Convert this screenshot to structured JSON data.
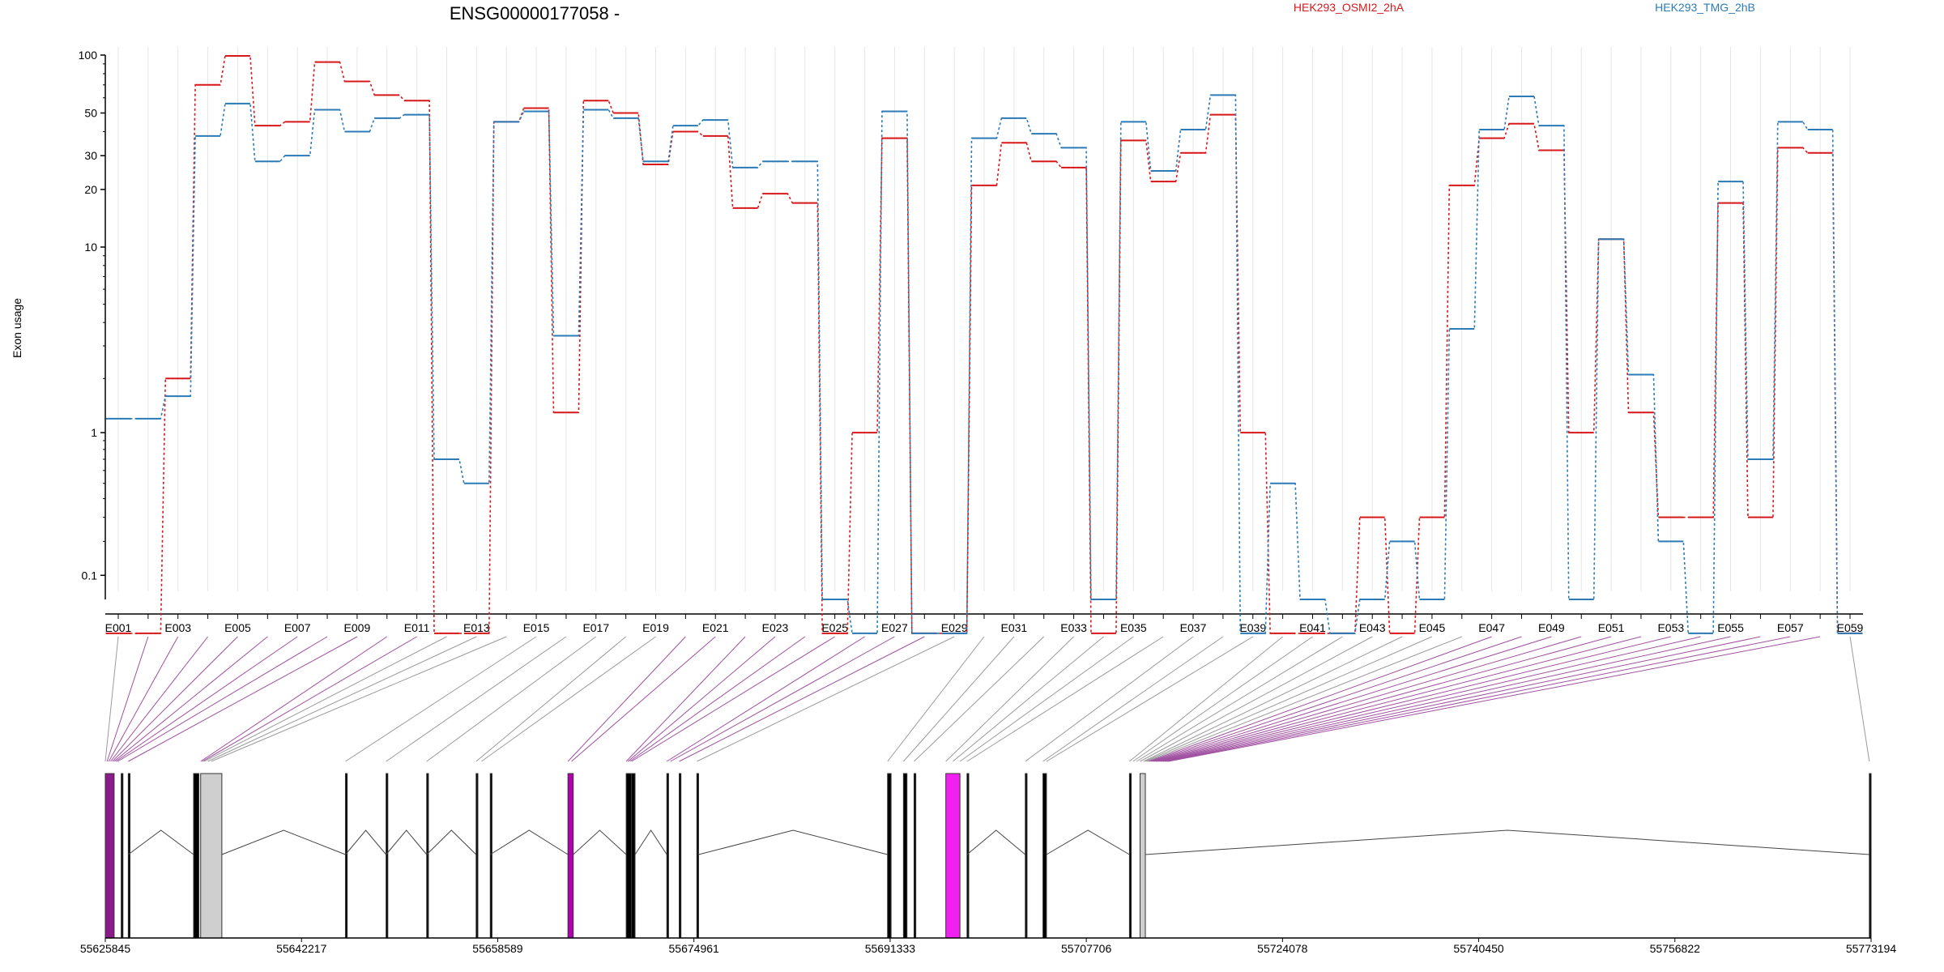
{
  "title": "ENSG00000177058 -",
  "chart_data": {
    "type": "line",
    "title": "ENSG00000177058 -",
    "ylabel": "Exon usage",
    "yscale": "log(x+0.1)",
    "ylim": [
      0.1,
      100
    ],
    "yticks": [
      0.1,
      1,
      10,
      20,
      30,
      50,
      100
    ],
    "ytick_labels": [
      "0.1",
      "1",
      "10",
      "20",
      "30",
      "50",
      "100"
    ],
    "categories": [
      "E001",
      "E002",
      "E003",
      "E004",
      "E005",
      "E006",
      "E007",
      "E008",
      "E009",
      "E010",
      "E011",
      "E012",
      "E013",
      "E014",
      "E015",
      "E016",
      "E017",
      "E018",
      "E019",
      "E020",
      "E021",
      "E022",
      "E023",
      "E024",
      "E025",
      "E026",
      "E027",
      "E028",
      "E029",
      "E030",
      "E031",
      "E032",
      "E033",
      "E034",
      "E035",
      "E036",
      "E037",
      "E038",
      "E039",
      "E040",
      "E041",
      "E042",
      "E043",
      "E044",
      "E045",
      "E046",
      "E047",
      "E048",
      "E049",
      "E050",
      "E051",
      "E052",
      "E053",
      "E054",
      "E055",
      "E056",
      "E057",
      "E058",
      "E059"
    ],
    "xtick_labels": [
      "E001",
      "E003",
      "E005",
      "E007",
      "E009",
      "E011",
      "E013",
      "E015",
      "E017",
      "E019",
      "E021",
      "E023",
      "E025",
      "E027",
      "E029",
      "E031",
      "E033",
      "E035",
      "E037",
      "E039",
      "E041",
      "E043",
      "E045",
      "E047",
      "E049",
      "E051",
      "E053",
      "E055",
      "E057",
      "E059"
    ],
    "series": [
      {
        "name": "HEK293_OSMI2_2hA",
        "color": "#d7191c",
        "values": [
          0.0,
          0.0,
          2.0,
          70,
          99,
          43,
          45,
          92,
          73,
          62,
          58,
          0.0,
          0.0,
          45,
          53,
          1.3,
          58,
          50,
          27,
          40,
          38,
          16,
          19,
          17,
          0.0,
          1.0,
          37,
          0.0,
          0.0,
          21,
          35,
          28,
          26,
          0.0,
          36,
          22,
          31,
          49,
          1.0,
          0.0,
          0.0,
          0.0,
          0.3,
          0.0,
          0.3,
          21,
          37,
          44,
          32,
          1.0,
          11,
          1.3,
          0.3,
          0.3,
          17,
          0.3,
          33,
          31,
          0.0
        ]
      },
      {
        "name": "HEK293_TMG_2hB",
        "color": "#2c7bb6",
        "values": [
          1.2,
          1.2,
          1.6,
          38,
          56,
          28,
          30,
          52,
          40,
          47,
          49,
          0.7,
          0.5,
          45,
          51,
          3.4,
          52,
          47,
          28,
          43,
          46,
          26,
          28,
          28,
          0.05,
          0.0,
          51,
          0.0,
          0.0,
          37,
          47,
          39,
          33,
          0.05,
          45,
          25,
          41,
          62,
          0.0,
          0.5,
          0.05,
          0.0,
          0.05,
          0.2,
          0.05,
          3.7,
          41,
          61,
          43,
          0.05,
          11,
          2.1,
          0.2,
          0.0,
          22,
          0.7,
          45,
          41,
          0.0
        ]
      }
    ],
    "genomic_axis": {
      "tick_labels": [
        "55625845",
        "55642217",
        "55658589",
        "55674961",
        "55691333",
        "55707706",
        "55724078",
        "55740450",
        "55756822",
        "55773194"
      ]
    },
    "legend": [
      "HEK293_OSMI2_2hA",
      "HEK293_TMG_2hB"
    ],
    "legend_position": "top",
    "grid": true
  }
}
